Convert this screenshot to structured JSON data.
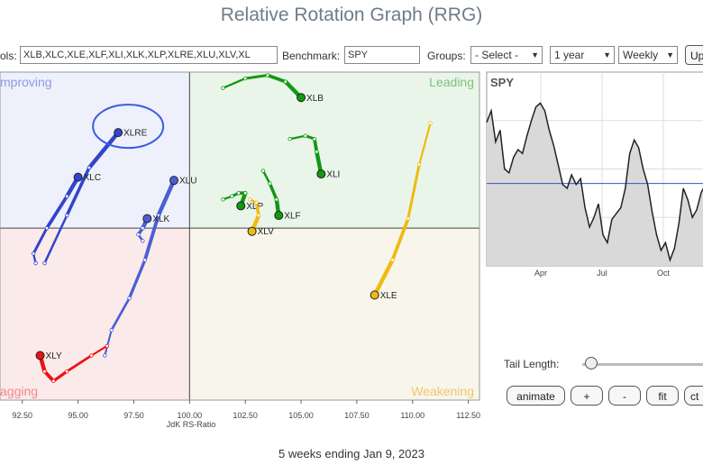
{
  "header": {
    "title": "Relative Rotation Graph (RRG)"
  },
  "toolbar": {
    "symbols_label": "ols:",
    "symbols_value": "XLB,XLC,XLE,XLF,XLI,XLK,XLP,XLRE,XLU,XLV,XL",
    "benchmark_label": "Benchmark:",
    "benchmark_value": "SPY",
    "groups_label": "Groups:",
    "groups_value": "- Select -",
    "period_value": "1 year",
    "frequency_value": "Weekly",
    "update_label": "Up"
  },
  "quadrants": {
    "improving": "mproving",
    "leading": "Leading",
    "lagging": "agging",
    "weakening": "Weakening",
    "colors": {
      "improving": "#eef0fb",
      "leading": "#eaf5ea",
      "lagging": "#fbeaea",
      "weakening": "#f8f5ea"
    }
  },
  "benchmark_chart": {
    "symbol": "SPY",
    "x_labels": [
      "Apr",
      "Jul",
      "Oct"
    ],
    "line_color": "#222222",
    "fill_color": "#d9d9d9",
    "ref_line_color": "#3b4fd4"
  },
  "controls": {
    "tail_length_label": "Tail Length:",
    "animate_label": "animate",
    "plus_label": "+",
    "minus_label": "-",
    "fit_label": "fit",
    "center_label": "ct"
  },
  "footer": {
    "text": "5 weeks ending Jan 9, 2023"
  },
  "chart_data": {
    "type": "scatter",
    "xlabel": "JdK RS-Ratio",
    "x_ticks": [
      "92.50",
      "95.00",
      "97.50",
      "100.00",
      "102.50",
      "105.00",
      "107.50",
      "110.00",
      "112.50"
    ],
    "xlim": [
      91.5,
      113
    ],
    "ylim": [
      94.6,
      104.9
    ],
    "center": [
      100,
      100
    ],
    "highlight": "XLRE",
    "series": [
      {
        "name": "XLRE",
        "color": "#3344cc",
        "x": [
          93.5,
          94.5,
          95.5,
          96.8
        ],
        "y": [
          98.9,
          100.4,
          101.9,
          103.0
        ]
      },
      {
        "name": "XLC",
        "color": "#3344cc",
        "x": [
          93.1,
          93.0,
          93.6,
          94.5,
          95.0
        ],
        "y": [
          98.9,
          99.2,
          100.0,
          101.0,
          101.6
        ]
      },
      {
        "name": "XLU",
        "color": "#4a5fd4",
        "x": [
          96.2,
          96.5,
          97.3,
          98.0,
          98.6,
          99.3
        ],
        "y": [
          96.0,
          96.8,
          97.8,
          99.0,
          100.4,
          101.5
        ]
      },
      {
        "name": "XLK",
        "color": "#4a5fd4",
        "x": [
          97.9,
          97.7,
          97.9,
          98.1
        ],
        "y": [
          99.6,
          99.8,
          100.0,
          100.3
        ]
      },
      {
        "name": "XLY",
        "color": "#ee1111",
        "x": [
          96.3,
          95.6,
          94.5,
          93.9,
          93.5,
          93.3
        ],
        "y": [
          96.3,
          96.0,
          95.5,
          95.2,
          95.5,
          96.0
        ]
      },
      {
        "name": "XLB",
        "color": "#119911",
        "x": [
          101.5,
          102.5,
          103.5,
          104.3,
          105.0
        ],
        "y": [
          104.4,
          104.7,
          104.8,
          104.6,
          104.1
        ]
      },
      {
        "name": "XLI",
        "color": "#119911",
        "x": [
          104.5,
          105.2,
          105.6,
          105.7,
          105.9
        ],
        "y": [
          102.8,
          102.9,
          102.8,
          102.4,
          101.7
        ]
      },
      {
        "name": "XLP",
        "color": "#119911",
        "x": [
          101.5,
          101.9,
          102.2,
          102.5,
          102.3
        ],
        "y": [
          100.9,
          101.0,
          101.1,
          101.1,
          100.7
        ]
      },
      {
        "name": "XLF",
        "color": "#119911",
        "x": [
          103.3,
          103.6,
          103.9,
          104.0
        ],
        "y": [
          101.8,
          101.4,
          100.9,
          100.4
        ]
      },
      {
        "name": "XLV",
        "color": "#eebb11",
        "x": [
          102.7,
          103.0,
          103.1,
          102.8
        ],
        "y": [
          100.9,
          100.8,
          100.4,
          99.9
        ]
      },
      {
        "name": "XLE",
        "color": "#eebb11",
        "x": [
          110.8,
          110.3,
          109.8,
          109.1,
          108.3
        ],
        "y": [
          103.3,
          102.0,
          100.3,
          99.0,
          97.9
        ]
      }
    ]
  }
}
